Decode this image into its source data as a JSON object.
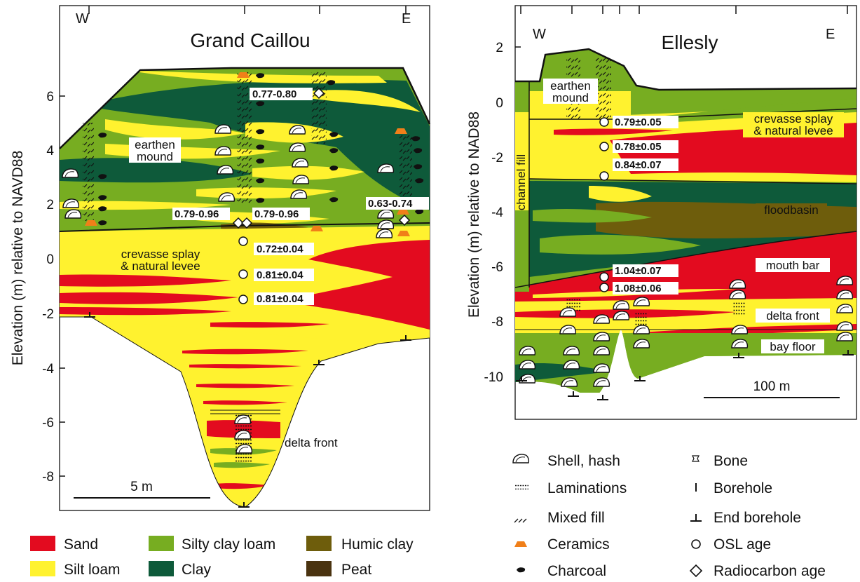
{
  "left_panel": {
    "title": "Grand Caillou",
    "west": "W",
    "east": "E",
    "y_axis_label": "Elevation (m) relative to NAVD88",
    "y_ticks": [
      "6",
      "4",
      "2",
      "0",
      "-2",
      "-4",
      "-6",
      "-8"
    ],
    "units": [
      "earthen\nmound",
      "crevasse splay\n& natural levee",
      "delta front"
    ],
    "unit_labels": {
      "earthen_mound_1": "earthen",
      "earthen_mound_2": "mound",
      "crevasse_1": "crevasse splay",
      "crevasse_2": "& natural levee",
      "delta_front": "delta front"
    },
    "ages": {
      "r1": "0.77-0.80",
      "r2": "0.79-0.96",
      "r3": "0.79-0.96",
      "r4": "0.63-0.74",
      "o1": "0.72±0.04",
      "o2": "0.81±0.04",
      "o3": "0.81±0.04"
    },
    "scale_bar": "5 m"
  },
  "right_panel": {
    "title": "Ellesly",
    "west": "W",
    "east": "E",
    "y_axis_label": "Elevation (m) relative to NAD88",
    "y_ticks": [
      "2",
      "0",
      "-2",
      "-4",
      "-6",
      "-8",
      "-10"
    ],
    "unit_labels": {
      "earthen_mound_1": "earthen",
      "earthen_mound_2": "mound",
      "channel_fill": "channel fill",
      "crevasse_1": "crevasse splay",
      "crevasse_2": "& natural levee",
      "floodbasin": "floodbasin",
      "mouth_bar": "mouth bar",
      "delta_front": "delta front",
      "bay_floor": "bay floor"
    },
    "ages": {
      "o1": "0.79±0.05",
      "o2": "0.78±0.05",
      "o3": "0.84±0.07",
      "o4": "1.04±0.07",
      "o5": "1.08±0.06"
    },
    "scale_bar": "100 m"
  },
  "lithology_legend": {
    "sand": "Sand",
    "silt_loam": "Silt loam",
    "silty_clay_loam": "Silty clay loam",
    "clay": "Clay",
    "humic_clay": "Humic clay",
    "peat": "Peat"
  },
  "symbol_legend": {
    "shell": "Shell, hash",
    "laminations": "Laminations",
    "mixed_fill": "Mixed fill",
    "ceramics": "Ceramics",
    "charcoal": "Charcoal",
    "bone": "Bone",
    "borehole": "Borehole",
    "end_borehole": "End borehole",
    "osl": "OSL age",
    "radiocarbon": "Radiocarbon age"
  },
  "colors": {
    "sand": "#e30b1f",
    "silt_loam": "#fff22f",
    "silty_clay_loam": "#77ad21",
    "clay": "#0e5a3a",
    "humic_clay": "#6e5d0c",
    "peat": "#4a3310",
    "ceramics": "#f07f19"
  }
}
